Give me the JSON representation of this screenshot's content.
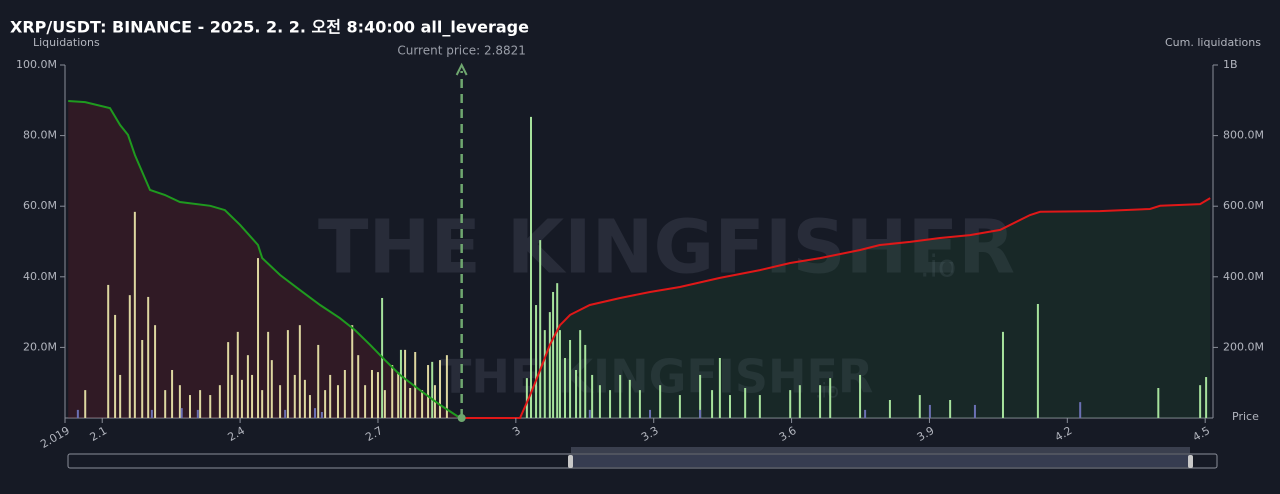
{
  "chart_data": {
    "type": "bar",
    "title": "XRP/USDT: BINANCE - 2025. 2. 2. 오전 8:40:00 all_leverage",
    "y_label": "Liquidations",
    "y2_label": "Cum. liquidations",
    "x_label": "Price",
    "watermark": [
      "THE KINGFISHER",
      ".io"
    ],
    "current_price": {
      "value": 2.8821,
      "label": "Current price: 2.8821"
    },
    "xlim": [
      2.019,
      4.517
    ],
    "xticks": [
      2.019,
      2.1,
      2.4,
      2.7,
      3,
      3.3,
      3.6,
      3.9,
      4.2,
      4.5
    ],
    "ylim": [
      0,
      100000000
    ],
    "yticks": [
      {
        "value": 20000000,
        "label": "20.0M"
      },
      {
        "value": 40000000,
        "label": "40.0M"
      },
      {
        "value": 60000000,
        "label": "60.0M"
      },
      {
        "value": 80000000,
        "label": "80.0M"
      },
      {
        "value": 100000000,
        "label": "100.0M"
      }
    ],
    "y2lim": [
      0,
      1000000000
    ],
    "y2ticks": [
      {
        "value": 200000000,
        "label": "200.0M"
      },
      {
        "value": 400000000,
        "label": "400.0M"
      },
      {
        "value": 600000000,
        "label": "600.0M"
      },
      {
        "value": 800000000,
        "label": "800.0M"
      },
      {
        "value": 1000000000,
        "label": "1B"
      }
    ],
    "series": [
      {
        "type": "bar",
        "color": "#ddd7a0",
        "x": [
          2.063,
          2.113,
          2.128,
          2.139,
          2.16,
          2.171,
          2.187,
          2.2,
          2.215,
          2.237,
          2.252,
          2.269,
          2.291,
          2.313,
          2.335,
          2.356,
          2.374,
          2.382,
          2.395,
          2.404,
          2.417,
          2.426,
          2.439,
          2.448,
          2.461,
          2.469,
          2.487,
          2.504,
          2.519,
          2.53,
          2.541,
          2.552,
          2.57,
          2.585,
          2.596,
          2.613,
          2.628,
          2.644,
          2.657,
          2.672,
          2.687,
          2.7,
          2.715,
          2.731,
          2.744,
          2.759,
          2.77,
          2.781,
          2.796,
          2.809,
          2.824,
          2.835,
          2.85
        ],
        "values": [
          7900000,
          37700000,
          29200000,
          12200000,
          34800000,
          58400000,
          22100000,
          34300000,
          26300000,
          7900000,
          13600000,
          9300000,
          6500000,
          7900000,
          6500000,
          9300000,
          21500000,
          12200000,
          24400000,
          10800000,
          17800000,
          12200000,
          45300000,
          7900000,
          24400000,
          16400000,
          9300000,
          24900000,
          12200000,
          26300000,
          10800000,
          6500000,
          20700000,
          7900000,
          12200000,
          9300000,
          13600000,
          26300000,
          17800000,
          9300000,
          13600000,
          13000000,
          7900000,
          15000000,
          13000000,
          19300000,
          8500000,
          18700000,
          7900000,
          15000000,
          9300000,
          16400000,
          17800000
        ]
      },
      {
        "type": "bar",
        "color": "#a6e29c",
        "x": [
          2.709,
          2.75,
          2.818,
          3.024,
          3.033,
          3.044,
          3.053,
          3.063,
          3.074,
          3.081,
          3.09,
          3.096,
          3.107,
          3.118,
          3.131,
          3.14,
          3.151,
          3.166,
          3.183,
          3.205,
          3.227,
          3.248,
          3.27,
          3.314,
          3.357,
          3.401,
          3.427,
          3.444,
          3.466,
          3.499,
          3.531,
          3.597,
          3.618,
          3.662,
          3.684,
          3.749,
          3.814,
          3.879,
          3.945,
          4.06,
          4.136,
          4.398,
          4.489,
          4.502
        ],
        "values": [
          34000000,
          19300000,
          15900000,
          11300000,
          85300000,
          32000000,
          50400000,
          24900000,
          30000000,
          35700000,
          38200000,
          24900000,
          17000000,
          22100000,
          13600000,
          24900000,
          20700000,
          12200000,
          9300000,
          7900000,
          12200000,
          10800000,
          7900000,
          9300000,
          6500000,
          12200000,
          7900000,
          17000000,
          6500000,
          8500000,
          6500000,
          7900000,
          9300000,
          9300000,
          11300000,
          12200000,
          5100000,
          6500000,
          5100000,
          24400000,
          32300000,
          8500000,
          9300000,
          11600000
        ]
      },
      {
        "type": "bar",
        "color": "#6b70b4",
        "x": [
          2.047,
          2.208,
          2.273,
          2.308,
          2.498,
          2.563,
          2.578,
          3.161,
          3.292,
          3.401,
          3.76,
          3.901,
          3.999,
          4.228
        ],
        "values": [
          2300000,
          2300000,
          2800000,
          2300000,
          2300000,
          2800000,
          1700000,
          2300000,
          2300000,
          2300000,
          2300000,
          3700000,
          3700000,
          4500000
        ]
      },
      {
        "type": "line",
        "axis": "y2",
        "color": "#1f9a1f",
        "fill": "rgba(120,30,40,0.28)",
        "x": [
          2.026,
          2.063,
          2.117,
          2.139,
          2.156,
          2.171,
          2.204,
          2.236,
          2.269,
          2.335,
          2.367,
          2.4,
          2.439,
          2.448,
          2.487,
          2.53,
          2.574,
          2.617,
          2.65,
          2.683,
          2.715,
          2.748,
          2.791,
          2.835,
          2.879
        ],
        "values": [
          898000000,
          895000000,
          878000000,
          830000000,
          802000000,
          745000000,
          646000000,
          632000000,
          612000000,
          601000000,
          589000000,
          547000000,
          490000000,
          453000000,
          405000000,
          363000000,
          320000000,
          283000000,
          249000000,
          207000000,
          164000000,
          122000000,
          79000000,
          37000000,
          0
        ]
      },
      {
        "type": "line",
        "axis": "y2",
        "color": "#e01818",
        "fill": "rgba(30,90,50,0.22)",
        "x": [
          2.879,
          3.009,
          3.031,
          3.053,
          3.074,
          3.096,
          3.118,
          3.161,
          3.227,
          3.292,
          3.357,
          3.444,
          3.531,
          3.597,
          3.662,
          3.749,
          3.792,
          3.858,
          3.923,
          3.988,
          4.054,
          4.119,
          4.141,
          4.271,
          4.38,
          4.402,
          4.489,
          4.511
        ],
        "values": [
          0,
          0,
          65000000,
          136000000,
          207000000,
          263000000,
          292000000,
          320000000,
          340000000,
          357000000,
          371000000,
          397000000,
          419000000,
          439000000,
          453000000,
          476000000,
          490000000,
          499000000,
          510000000,
          518000000,
          533000000,
          575000000,
          584000000,
          586000000,
          592000000,
          601000000,
          606000000,
          623000000
        ]
      }
    ]
  }
}
